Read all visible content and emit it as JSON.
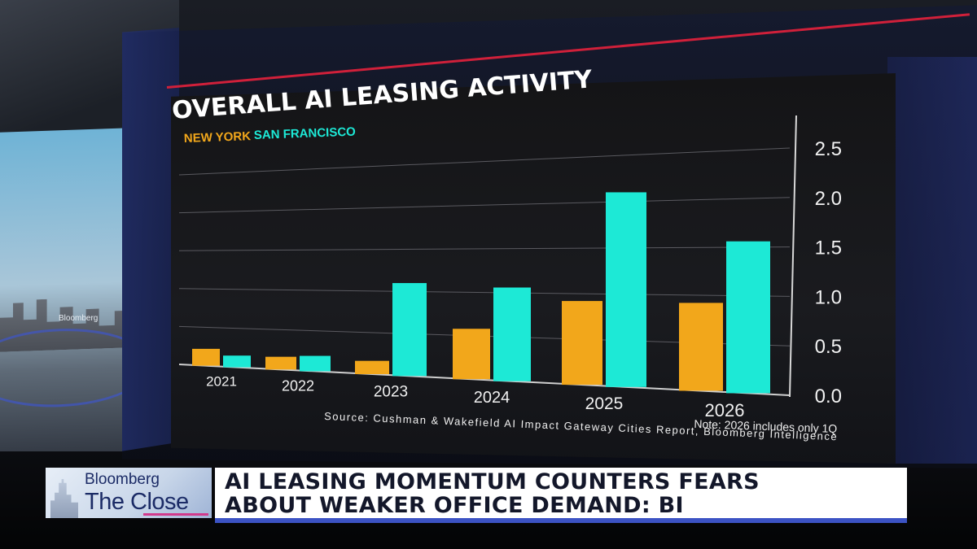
{
  "chart_data": {
    "type": "bar",
    "title": "OVERALL AI LEASING ACTIVITY",
    "categories": [
      "2021",
      "2022",
      "2023",
      "2024",
      "2025",
      "2026"
    ],
    "series": [
      {
        "name": "NEW YORK",
        "color": "#f2a71b",
        "values": [
          0.22,
          0.16,
          0.16,
          0.58,
          0.92,
          0.92
        ]
      },
      {
        "name": "SAN FRANCISCO",
        "color": "#1de9d6",
        "values": [
          0.15,
          0.19,
          1.1,
          1.06,
          2.1,
          1.56
        ]
      }
    ],
    "yticks": [
      "0.0",
      "0.5",
      "1.0",
      "1.5",
      "2.0",
      "2.5"
    ],
    "ylim": [
      0,
      2.5
    ],
    "grid": true,
    "legend_position": "top-left",
    "source": "Source: Cushman & Wakefield AI Impact Gateway Cities Report, Bloomberg Intelligence",
    "note": "Note: 2026 includes only 1Q"
  },
  "side_screen": {
    "label": "Bloomberg"
  },
  "lower_third": {
    "brand": "Bloomberg",
    "show": "The Close",
    "headline_line1": "AI LEASING MOMENTUM COUNTERS FEARS",
    "headline_line2": "ABOUT WEAKER OFFICE DEMAND: BI"
  }
}
